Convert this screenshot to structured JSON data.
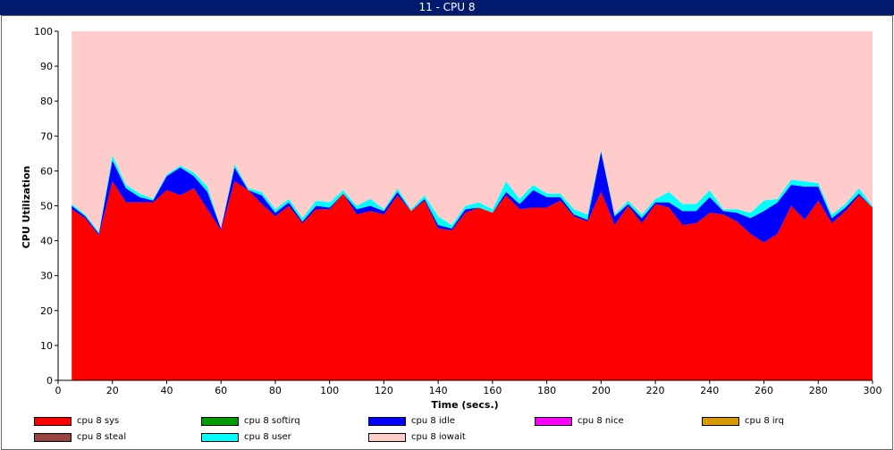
{
  "window": {
    "title": "11 - CPU 8"
  },
  "chart_data": {
    "type": "area",
    "stacked": true,
    "xlabel": "Time (secs.)",
    "ylabel": "CPU Utilization",
    "xlim": [
      0,
      300
    ],
    "ylim": [
      0,
      100
    ],
    "xticks": [
      0,
      20,
      40,
      60,
      80,
      100,
      120,
      140,
      160,
      180,
      200,
      220,
      240,
      260,
      280,
      300
    ],
    "yticks": [
      0,
      10,
      20,
      30,
      40,
      50,
      60,
      70,
      80,
      90,
      100
    ],
    "x": [
      5,
      10,
      15,
      20,
      25,
      30,
      35,
      40,
      45,
      50,
      55,
      60,
      65,
      70,
      75,
      80,
      85,
      90,
      95,
      100,
      105,
      110,
      115,
      120,
      125,
      130,
      135,
      140,
      145,
      150,
      155,
      160,
      165,
      170,
      175,
      180,
      185,
      190,
      195,
      200,
      205,
      210,
      215,
      220,
      225,
      230,
      235,
      240,
      245,
      250,
      255,
      260,
      265,
      270,
      275,
      280,
      285,
      290,
      295,
      300
    ],
    "series": [
      {
        "name": "cpu 8 sys",
        "color": "#ff0000",
        "values": [
          49,
          46.5,
          41.5,
          57,
          51,
          51,
          51,
          54.5,
          53,
          55,
          49,
          43,
          57,
          54.5,
          50.5,
          47,
          50,
          45,
          49,
          49,
          53.5,
          47.5,
          48.5,
          47.5,
          53,
          48.5,
          51.5,
          43.5,
          43,
          48,
          49.5,
          48,
          53,
          49,
          49.5,
          49.5,
          51.5,
          47,
          45.5,
          54,
          44.5,
          50,
          45,
          50.5,
          49.5,
          44.5,
          45,
          48,
          47.5,
          45.5,
          42,
          39.5,
          42,
          50,
          46,
          51.5,
          45,
          48.5,
          53,
          49.5
        ]
      },
      {
        "name": "cpu 8 softirq",
        "color": "#009900",
        "values": [
          0,
          0,
          0,
          0,
          0,
          0,
          0,
          0,
          0,
          0,
          0,
          0,
          0,
          0,
          0,
          0,
          0,
          0,
          0,
          0,
          0,
          0,
          0,
          0,
          0,
          0,
          0,
          0,
          0,
          0,
          0,
          0,
          0,
          0,
          0,
          0,
          0,
          0,
          0,
          0,
          0,
          0,
          0,
          0,
          0,
          0,
          0,
          0,
          0,
          0,
          0,
          0,
          0,
          0,
          0,
          0,
          0,
          0,
          0,
          0
        ]
      },
      {
        "name": "cpu 8 idle",
        "color": "#0000ff",
        "values": [
          1,
          0.5,
          0.5,
          6,
          4,
          1.5,
          0.5,
          4,
          8,
          3.5,
          5,
          0.5,
          4,
          0,
          2.5,
          1,
          1,
          0.5,
          1,
          0.5,
          0,
          1.5,
          1.5,
          1,
          1,
          0,
          0.5,
          1,
          0.5,
          1,
          0,
          0,
          1,
          1.5,
          5,
          3,
          1,
          0.5,
          0.5,
          11.5,
          2.5,
          0.5,
          1.5,
          0.5,
          1.5,
          4,
          3.5,
          4.5,
          1,
          2.5,
          4.5,
          9,
          9,
          6,
          9.5,
          4,
          1.5,
          1,
          0.5,
          0
        ]
      },
      {
        "name": "cpu 8 nice",
        "color": "#ff00ff",
        "values": [
          0,
          0,
          0,
          0,
          0,
          0,
          0,
          0,
          0,
          0,
          0,
          0,
          0,
          0,
          0,
          0,
          0,
          0,
          0,
          0,
          0,
          0,
          0,
          0,
          0,
          0,
          0,
          0,
          0,
          0,
          0,
          0,
          0,
          0,
          0,
          0,
          0,
          0,
          0,
          0,
          0,
          0,
          0,
          0,
          0,
          0,
          0,
          0,
          0,
          0,
          0,
          0,
          0,
          0,
          0,
          0,
          0,
          0,
          0,
          0
        ]
      },
      {
        "name": "cpu 8 irq",
        "color": "#d99a00",
        "values": [
          0,
          0,
          0,
          0,
          0,
          0,
          0,
          0,
          0,
          0,
          0,
          0,
          0,
          0,
          0,
          0,
          0,
          0,
          0,
          0,
          0,
          0,
          0,
          0,
          0,
          0,
          0,
          0,
          0,
          0,
          0,
          0,
          0,
          0,
          0,
          0,
          0,
          0,
          0,
          0,
          0,
          0,
          0,
          0,
          0,
          0,
          0,
          0,
          0,
          0,
          0,
          0,
          0,
          0,
          0,
          0,
          0,
          0,
          0,
          0
        ]
      },
      {
        "name": "cpu 8 steal",
        "color": "#994444",
        "values": [
          0,
          0,
          0,
          0,
          0,
          0,
          0,
          0,
          0,
          0,
          0,
          0,
          0,
          0,
          0,
          0,
          0,
          0,
          0,
          0,
          0,
          0,
          0,
          0,
          0,
          0,
          0,
          0,
          0,
          0,
          0,
          0,
          0,
          0,
          0,
          0,
          0,
          0,
          0,
          0,
          0,
          0,
          0,
          0,
          0,
          0,
          0,
          0,
          0,
          0,
          0,
          0,
          0,
          0,
          0,
          0,
          0,
          0,
          0,
          0
        ]
      },
      {
        "name": "cpu 8 user",
        "color": "#00ffff",
        "values": [
          0.5,
          0.5,
          0.5,
          1.5,
          1,
          1,
          0.5,
          0.5,
          0.5,
          1,
          1.5,
          0,
          1,
          0.5,
          1,
          1,
          1,
          1,
          1.5,
          1.5,
          1,
          1,
          2,
          0.5,
          1,
          0.5,
          1,
          2.5,
          1,
          1,
          1.5,
          1,
          3,
          1.5,
          1.5,
          1,
          1,
          1.5,
          1.5,
          0.5,
          0.5,
          1,
          1,
          1,
          3,
          2,
          2,
          2,
          0.5,
          1,
          1.5,
          3,
          1,
          1.5,
          1.5,
          1,
          1,
          1,
          1.5,
          0.5
        ]
      },
      {
        "name": "cpu 8 iowait",
        "color": "#ffcccc",
        "values": [
          49.5,
          52.5,
          57.5,
          35.5,
          44,
          46.5,
          48,
          41,
          38.5,
          40.5,
          44.5,
          56.5,
          38,
          45,
          46,
          51,
          48,
          53.5,
          48.5,
          49,
          45.5,
          50,
          48,
          51,
          45,
          51,
          47,
          53,
          55.5,
          50,
          49,
          51,
          43,
          48,
          44,
          46.5,
          46.5,
          51,
          52.5,
          34,
          52.5,
          48.5,
          52.5,
          48,
          46,
          49.5,
          49.5,
          45.5,
          51,
          51,
          52,
          48.5,
          48,
          42.5,
          43,
          43.5,
          52.5,
          49.5,
          45,
          50
        ]
      }
    ],
    "legend_position": "bottom",
    "grid": false
  }
}
